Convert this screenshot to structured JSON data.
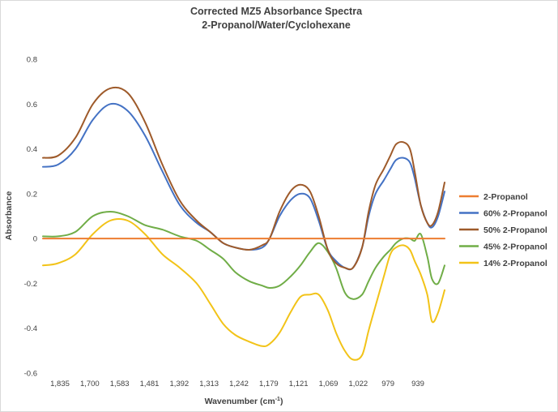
{
  "chart_data": {
    "type": "line",
    "title": "Corrected MZ5 Absorbance Spectra",
    "subtitle": "2-Propanol/Water/Cyclohexane",
    "xlabel": "Wavenumber (cm",
    "xlabel_sup": "-1",
    "xlabel_suffix": ")",
    "ylabel": "Absorbance",
    "ylim": [
      -0.6,
      0.8
    ],
    "y_ticks": [
      "0.8",
      "0.6",
      "0.4",
      "0.2",
      "0",
      "-0.2",
      "-0.4",
      "-0.6"
    ],
    "x_tick_labels": [
      "1,835",
      "1,700",
      "1,583",
      "1,481",
      "1,392",
      "1,313",
      "1,242",
      "1,179",
      "1,121",
      "1,069",
      "1,022",
      "979",
      "939"
    ],
    "x_order": "decreasing",
    "grid": false,
    "legend_position": "right",
    "x": [
      1835,
      1800,
      1760,
      1720,
      1680,
      1640,
      1600,
      1560,
      1520,
      1481,
      1450,
      1420,
      1392,
      1360,
      1330,
      1313,
      1290,
      1265,
      1242,
      1220,
      1200,
      1179,
      1160,
      1140,
      1121,
      1100,
      1085,
      1069,
      1050,
      1035,
      1022,
      1005,
      990,
      979,
      965,
      950,
      939,
      925,
      910
    ],
    "series": [
      {
        "name": "2-Propanol",
        "color": "#ED7D31",
        "values": [
          0,
          0,
          0,
          0,
          0,
          0,
          0,
          0,
          0,
          0,
          0,
          0,
          0,
          0,
          0,
          0,
          0,
          0,
          0,
          0,
          0,
          0,
          0,
          0,
          0,
          0,
          0,
          0,
          0,
          0,
          0,
          0,
          0,
          0,
          0,
          0,
          0,
          0,
          0
        ]
      },
      {
        "name": "60% 2-Propanol",
        "color": "#4472C4",
        "values": [
          0.32,
          0.33,
          0.4,
          0.53,
          0.6,
          0.57,
          0.46,
          0.3,
          0.15,
          0.07,
          0.03,
          -0.02,
          -0.04,
          -0.05,
          -0.04,
          0.0,
          0.1,
          0.17,
          0.2,
          0.18,
          0.08,
          -0.05,
          -0.1,
          -0.13,
          -0.13,
          -0.04,
          0.1,
          0.2,
          0.26,
          0.31,
          0.35,
          0.36,
          0.34,
          0.27,
          0.15,
          0.07,
          0.05,
          0.1,
          0.21
        ]
      },
      {
        "name": "50% 2-Propanol",
        "color": "#9E5A2A",
        "values": [
          0.36,
          0.37,
          0.45,
          0.6,
          0.67,
          0.65,
          0.52,
          0.33,
          0.17,
          0.08,
          0.03,
          -0.02,
          -0.04,
          -0.05,
          -0.03,
          0.0,
          0.12,
          0.21,
          0.24,
          0.21,
          0.1,
          -0.05,
          -0.11,
          -0.13,
          -0.13,
          -0.04,
          0.12,
          0.24,
          0.31,
          0.37,
          0.42,
          0.43,
          0.4,
          0.3,
          0.15,
          0.07,
          0.06,
          0.12,
          0.25
        ]
      },
      {
        "name": "45% 2-Propanol",
        "color": "#70AD47",
        "values": [
          0.01,
          0.01,
          0.03,
          0.1,
          0.12,
          0.1,
          0.06,
          0.04,
          0.01,
          -0.01,
          -0.05,
          -0.09,
          -0.15,
          -0.19,
          -0.21,
          -0.22,
          -0.21,
          -0.17,
          -0.12,
          -0.06,
          -0.02,
          -0.06,
          -0.13,
          -0.24,
          -0.27,
          -0.25,
          -0.19,
          -0.13,
          -0.08,
          -0.05,
          -0.02,
          0.0,
          0.0,
          -0.01,
          0.02,
          -0.08,
          -0.18,
          -0.2,
          -0.12
        ]
      },
      {
        "name": "14% 2-Propanol",
        "color": "#F2C318",
        "values": [
          -0.12,
          -0.11,
          -0.07,
          0.02,
          0.08,
          0.08,
          0.02,
          -0.07,
          -0.13,
          -0.2,
          -0.29,
          -0.38,
          -0.43,
          -0.46,
          -0.48,
          -0.47,
          -0.42,
          -0.33,
          -0.26,
          -0.25,
          -0.25,
          -0.32,
          -0.42,
          -0.5,
          -0.54,
          -0.52,
          -0.41,
          -0.3,
          -0.17,
          -0.07,
          -0.04,
          -0.03,
          -0.05,
          -0.1,
          -0.16,
          -0.25,
          -0.37,
          -0.33,
          -0.23
        ]
      }
    ]
  }
}
